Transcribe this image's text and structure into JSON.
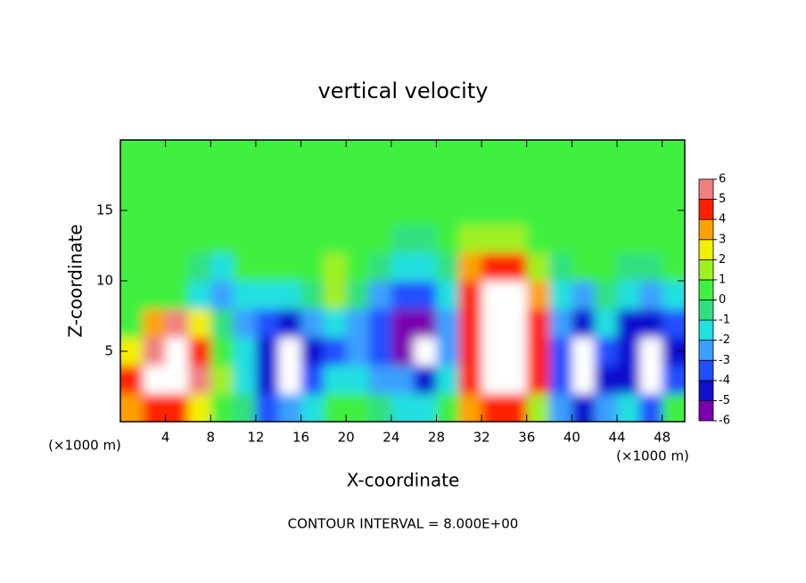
{
  "chart_data": {
    "type": "heatmap",
    "title": "vertical velocity",
    "x_label": "X-coordinate",
    "y_label": "Z-coordinate",
    "x_unit_labels": [
      "(×1000 m)",
      "(×1000 m)"
    ],
    "annotation": "CONTOUR INTERVAL = 8.000E+00",
    "xlim": [
      0,
      50
    ],
    "ylim": [
      0,
      20
    ],
    "xticks": [
      4,
      8,
      12,
      16,
      20,
      24,
      28,
      32,
      36,
      40,
      44,
      48
    ],
    "yticks": [
      5,
      10,
      15
    ],
    "x": [
      1,
      3,
      5,
      7,
      9,
      11,
      13,
      15,
      17,
      19,
      21,
      23,
      25,
      27,
      29,
      31,
      33,
      35,
      37,
      39,
      41,
      43,
      45,
      47,
      49
    ],
    "y": [
      1,
      3,
      5,
      7,
      9,
      11,
      13,
      15,
      17,
      19
    ],
    "z": [
      [
        4,
        5,
        5,
        3,
        0.5,
        0,
        -3,
        -2,
        -1,
        0.5,
        0.5,
        0,
        -1,
        -1,
        0.5,
        4,
        5,
        5,
        2,
        -2,
        -4,
        -2,
        -1,
        -3,
        0.5
      ],
      [
        5,
        6.5,
        7,
        6,
        2,
        -1,
        -4,
        -7,
        -3,
        -1,
        -1,
        -2,
        -2,
        -4,
        -1,
        5,
        7,
        7,
        5,
        -3,
        -7,
        -4,
        -4,
        -7,
        -3
      ],
      [
        3,
        6,
        7,
        5,
        1,
        -1,
        -4,
        -7,
        -4,
        -3,
        -2,
        -3,
        -5,
        -7,
        -2,
        5,
        8,
        8,
        5,
        -3,
        -6.5,
        -3,
        -4,
        -6.5,
        -4
      ],
      [
        1,
        4,
        6,
        3,
        0,
        -2,
        -3,
        -4,
        -2,
        -1,
        -2,
        -3,
        -5,
        -6,
        -2,
        5,
        8,
        8,
        5,
        -2,
        -4,
        -1,
        -4,
        -4,
        -3
      ],
      [
        0.5,
        1,
        1,
        -1,
        -2,
        -1,
        -1,
        -1,
        0,
        2,
        0,
        -2,
        -3,
        -3,
        -1,
        5,
        7,
        7,
        4,
        -1,
        -2,
        0,
        -1,
        -2,
        -1
      ],
      [
        0.5,
        0.5,
        0.5,
        0,
        -1,
        0.5,
        0.5,
        1,
        1,
        2,
        1,
        0,
        -1,
        -1,
        0,
        4,
        5,
        5,
        2,
        0,
        0.5,
        0.5,
        0,
        0,
        0.5
      ],
      [
        0.5,
        0.5,
        0.5,
        0.5,
        0.5,
        0.5,
        0.5,
        1,
        1,
        1,
        1,
        0.5,
        0,
        0,
        0.5,
        2,
        2,
        2,
        1,
        0.5,
        0.5,
        0.5,
        0.5,
        0.5,
        0.5
      ],
      [
        0.5,
        0.5,
        0.5,
        0.5,
        0.5,
        0.5,
        1,
        1,
        0.5,
        0.5,
        0.5,
        0.5,
        0.5,
        0.5,
        0.5,
        1,
        1,
        1,
        0.5,
        0.5,
        0.5,
        0.5,
        0.5,
        0.5,
        0.5
      ],
      [
        0.5,
        0.5,
        0.5,
        0.5,
        0.5,
        0.5,
        0.5,
        0.5,
        0.5,
        0.5,
        0.5,
        0.5,
        0.5,
        0.5,
        0.5,
        0.5,
        1,
        1,
        0.5,
        0.5,
        0.5,
        0.5,
        0.5,
        0.5,
        0.5
      ],
      [
        0.5,
        0.5,
        0.5,
        0.5,
        0.5,
        0.5,
        0.5,
        0.5,
        0.5,
        0.5,
        0.5,
        0.5,
        0.5,
        0.5,
        0.5,
        0.5,
        0.5,
        0.5,
        0.5,
        0.5,
        0.5,
        0.5,
        0.5,
        0.5,
        0.5
      ]
    ],
    "colorbar": {
      "levels": [
        -6,
        -5,
        -4,
        -3,
        -2,
        -1,
        0,
        1,
        2,
        3,
        4,
        5,
        6
      ],
      "colors": [
        "#7a00b0",
        "#1010d0",
        "#2050ff",
        "#3aa0ff",
        "#20e0e0",
        "#30e080",
        "#40f040",
        "#a0f020",
        "#f0f000",
        "#ffa000",
        "#ff2000",
        "#f08080"
      ],
      "overflow_color": "#ffffff"
    }
  }
}
